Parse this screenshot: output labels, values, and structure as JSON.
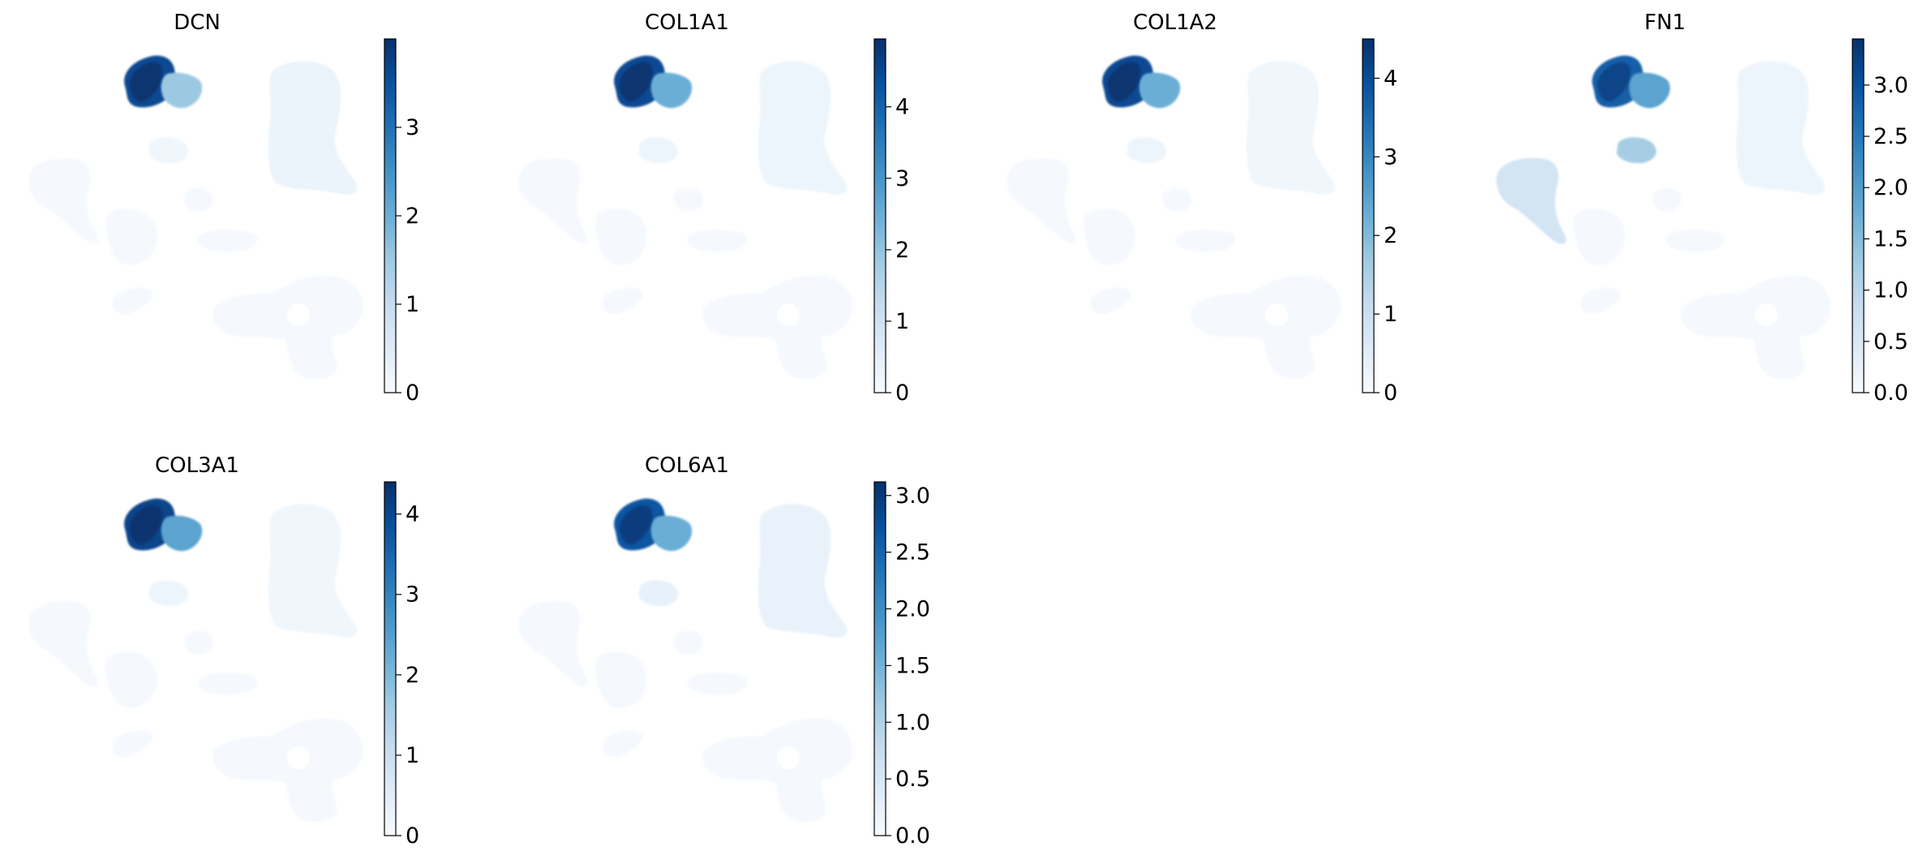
{
  "colormap": {
    "name": "Blues",
    "stops": [
      "#f7fbff",
      "#deebf7",
      "#c6dbef",
      "#9ecae1",
      "#6baed6",
      "#4292c6",
      "#2171b5",
      "#08519c",
      "#08306b"
    ],
    "background": "#f5f9fe",
    "frame": "#000000"
  },
  "chart_data": [
    {
      "type": "scatter",
      "embedding": "umap",
      "title": "DCN",
      "color_range": [
        0,
        4.0
      ],
      "colorbar_ticks": [
        "0",
        "1",
        "2",
        "3"
      ],
      "colorbar_tick_values": [
        0,
        1,
        2,
        3
      ],
      "high_expression_clusters": {
        "fibroblast-main": 0.9,
        "fibroblast-right": 0.38,
        "small-top": 0.04,
        "right-large": 0.06
      }
    },
    {
      "type": "scatter",
      "embedding": "umap",
      "title": "COL1A1",
      "color_range": [
        0,
        4.95
      ],
      "colorbar_ticks": [
        "0",
        "1",
        "2",
        "3",
        "4"
      ],
      "colorbar_tick_values": [
        0,
        1,
        2,
        3,
        4
      ],
      "high_expression_clusters": {
        "fibroblast-main": 0.9,
        "fibroblast-right": 0.5,
        "small-top": 0.05,
        "right-large": 0.05
      }
    },
    {
      "type": "scatter",
      "embedding": "umap",
      "title": "COL1A2",
      "color_range": [
        0,
        4.5
      ],
      "colorbar_ticks": [
        "0",
        "1",
        "2",
        "3",
        "4"
      ],
      "colorbar_tick_values": [
        0,
        1,
        2,
        3,
        4
      ],
      "high_expression_clusters": {
        "fibroblast-main": 0.9,
        "fibroblast-right": 0.5,
        "small-top": 0.05,
        "right-large": 0.04
      }
    },
    {
      "type": "scatter",
      "embedding": "umap",
      "title": "FN1",
      "color_range": [
        0,
        3.45
      ],
      "colorbar_ticks": [
        "0.0",
        "0.5",
        "1.0",
        "1.5",
        "2.0",
        "2.5",
        "3.0"
      ],
      "colorbar_tick_values": [
        0,
        0.5,
        1.0,
        1.5,
        2.0,
        2.5,
        3.0
      ],
      "high_expression_clusters": {
        "fibroblast-main": 0.82,
        "fibroblast-right": 0.55,
        "small-top": 0.35,
        "left-mid": 0.18,
        "right-large": 0.05
      }
    },
    {
      "type": "scatter",
      "embedding": "umap",
      "title": "COL3A1",
      "color_range": [
        0,
        4.4
      ],
      "colorbar_ticks": [
        "0",
        "1",
        "2",
        "3",
        "4"
      ],
      "colorbar_tick_values": [
        0,
        1,
        2,
        3,
        4
      ],
      "high_expression_clusters": {
        "fibroblast-main": 0.92,
        "fibroblast-right": 0.55,
        "small-top": 0.05,
        "right-large": 0.04
      }
    },
    {
      "type": "scatter",
      "embedding": "umap",
      "title": "COL6A1",
      "color_range": [
        0,
        3.12
      ],
      "colorbar_ticks": [
        "0.0",
        "0.5",
        "1.0",
        "1.5",
        "2.0",
        "2.5",
        "3.0"
      ],
      "colorbar_tick_values": [
        0,
        0.5,
        1.0,
        1.5,
        2.0,
        2.5,
        3.0
      ],
      "high_expression_clusters": {
        "fibroblast-main": 0.85,
        "fibroblast-right": 0.5,
        "small-top": 0.08,
        "right-large": 0.07
      }
    }
  ]
}
